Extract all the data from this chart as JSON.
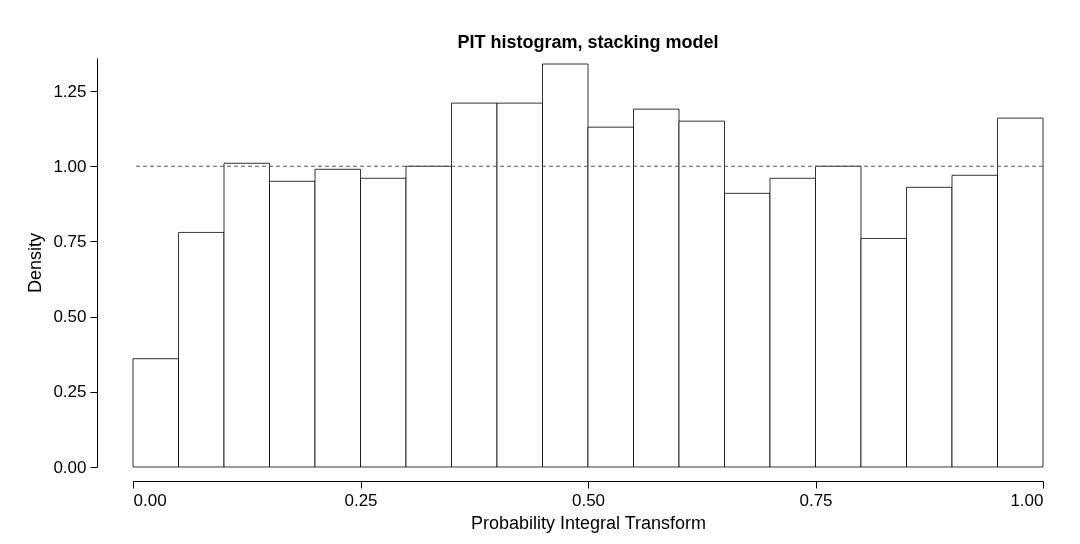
{
  "chart_data": {
    "type": "histogram",
    "title": "PIT histogram, stacking model",
    "xlabel": "Probability Integral Transform",
    "ylabel": "Density",
    "bins": [
      0,
      0.05,
      0.1,
      0.15,
      0.2,
      0.25,
      0.3,
      0.35,
      0.4,
      0.45,
      0.5,
      0.55,
      0.6,
      0.65,
      0.7,
      0.75,
      0.8,
      0.85,
      0.9,
      0.95,
      1
    ],
    "values": [
      0.36,
      0.78,
      1.01,
      0.95,
      0.99,
      0.96,
      1.0,
      1.21,
      1.21,
      1.34,
      1.13,
      1.19,
      1.15,
      0.91,
      0.96,
      1.0,
      0.76,
      0.93,
      0.97,
      1.16
    ],
    "color": "#ffffff",
    "xlim": [
      0,
      1
    ],
    "xticks": [
      {
        "value": 0,
        "label": "0.00"
      },
      {
        "value": 0.25,
        "label": "0.25"
      },
      {
        "value": 0.5,
        "label": "0.50"
      },
      {
        "value": 0.75,
        "label": "0.75"
      },
      {
        "value": 1,
        "label": "1.00"
      }
    ],
    "ylim": [
      0,
      1.36
    ],
    "yticks": [
      {
        "value": 0,
        "label": "0.00"
      },
      {
        "value": 0.25,
        "label": "0.25"
      },
      {
        "value": 0.5,
        "label": "0.50"
      },
      {
        "value": 0.75,
        "label": "0.75"
      },
      {
        "value": 1,
        "label": "1.00"
      },
      {
        "value": 1.25,
        "label": "1.25"
      }
    ],
    "ref_lines": [
      {
        "axis": "y",
        "value": 1,
        "line_style": "dashed",
        "color": "#555555"
      }
    ],
    "grid": false
  }
}
